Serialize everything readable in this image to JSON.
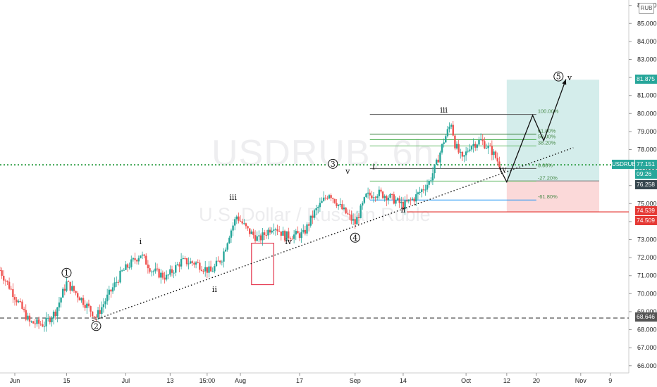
{
  "watermark": {
    "symbol": "USDRUB, 6h",
    "description": "U.S. Dollar / Russian Ruble"
  },
  "currency_badge": "RUB",
  "price_labels": {
    "target": "81.875",
    "current": "77.151",
    "countdown": "09:26",
    "level_76": "76.258",
    "stop_a": "74.539",
    "stop_b": "74.509",
    "support": "68.646"
  },
  "symbol_tag": "USDRUB",
  "fib_levels": [
    {
      "label": "100.00%",
      "price": 79.95,
      "color": "#555555"
    },
    {
      "label": "61.80%",
      "price": 78.85,
      "color": "#2e7d32"
    },
    {
      "label": "50.00%",
      "price": 78.55,
      "color": "#4caf50"
    },
    {
      "label": "38.20%",
      "price": 78.2,
      "color": "#66bb6a"
    },
    {
      "label": "0.00%",
      "price": 76.95,
      "color": "#555555"
    },
    {
      "label": "-27.20%",
      "price": 76.25,
      "color": "#66bb6a"
    },
    {
      "label": "-61.80%",
      "price": 75.2,
      "color": "#2196f3"
    }
  ],
  "wave_labels": [
    {
      "text": "1",
      "circled": true,
      "date": "2020-06-15",
      "price": 71.0
    },
    {
      "text": "2",
      "circled": true,
      "date": "2020-06-23",
      "price": 68.05
    },
    {
      "text": "3",
      "circled": true,
      "date": "2020-08-26",
      "price": 77.05
    },
    {
      "text": "4",
      "circled": true,
      "date": "2020-09-01",
      "price": 72.95
    },
    {
      "text": "5",
      "circled": true,
      "date": "2020-10-26",
      "price": 81.9
    },
    {
      "text": "i",
      "circled": false,
      "date": "2020-07-05",
      "price": 72.75
    },
    {
      "text": "ii",
      "circled": false,
      "date": "2020-07-25",
      "price": 70.1
    },
    {
      "text": "iii",
      "circled": false,
      "date": "2020-07-30",
      "price": 75.2
    },
    {
      "text": "iv",
      "circled": false,
      "date": "2020-08-14",
      "price": 72.75
    },
    {
      "text": "v",
      "circled": false,
      "date": "2020-08-30",
      "price": 76.65
    },
    {
      "text": "i",
      "circled": false,
      "date": "2020-09-06",
      "price": 76.9
    },
    {
      "text": "ii",
      "circled": false,
      "date": "2020-09-14",
      "price": 74.5
    },
    {
      "text": "iii",
      "circled": false,
      "date": "2020-09-25",
      "price": 80.05
    },
    {
      "text": "iv",
      "circled": false,
      "date": "2020-10-11",
      "price": 76.75
    },
    {
      "text": "v",
      "circled": false,
      "date": "2020-10-29",
      "price": 81.85
    }
  ],
  "chart_data": {
    "type": "candlestick",
    "symbol": "USDRUB",
    "timeframe": "6h",
    "x_type": "date",
    "x_range": [
      "2020-05-28",
      "2020-11-14"
    ],
    "ylim": [
      65.6,
      86.3
    ],
    "y_scale": "linear",
    "grid": false,
    "yticks": [
      66,
      67,
      68,
      69,
      70,
      71,
      72,
      73,
      74,
      75,
      76,
      77,
      78,
      79,
      80,
      81,
      82,
      83,
      84,
      85,
      86
    ],
    "ytick_labels": [
      "66.000",
      "67.000",
      "68.000",
      "69.000",
      "70.000",
      "71.000",
      "72.000",
      "73.000",
      "74.000",
      "75.000",
      "76.000",
      "77.000",
      "78.000",
      "79.000",
      "80.000",
      "81.000",
      "82.000",
      "83.000",
      "84.000",
      "85.000",
      "86.000"
    ],
    "xticks": [
      {
        "label": "Jun",
        "date": "2020-06-01"
      },
      {
        "label": "15",
        "date": "2020-06-15"
      },
      {
        "label": "Jul",
        "date": "2020-07-01"
      },
      {
        "label": "13",
        "date": "2020-07-13"
      },
      {
        "label": "15:00",
        "date": "2020-07-23"
      },
      {
        "label": "Aug",
        "date": "2020-08-01"
      },
      {
        "label": "17",
        "date": "2020-08-17"
      },
      {
        "label": "Sep",
        "date": "2020-09-01"
      },
      {
        "label": "14",
        "date": "2020-09-14"
      },
      {
        "label": "Oct",
        "date": "2020-10-01"
      },
      {
        "label": "12",
        "date": "2020-10-12"
      },
      {
        "label": "20",
        "date": "2020-10-20"
      },
      {
        "label": "Nov",
        "date": "2020-11-01"
      },
      {
        "label": "9",
        "date": "2020-11-09"
      }
    ],
    "price_path": [
      [
        "2020-05-28",
        71.3
      ],
      [
        "2020-06-02",
        69.5
      ],
      [
        "2020-06-05",
        68.4
      ],
      [
        "2020-06-09",
        68.3
      ],
      [
        "2020-06-12",
        69.0
      ],
      [
        "2020-06-15",
        70.6
      ],
      [
        "2020-06-19",
        69.7
      ],
      [
        "2020-06-23",
        68.7
      ],
      [
        "2020-06-26",
        69.8
      ],
      [
        "2020-06-30",
        71.2
      ],
      [
        "2020-07-02",
        71.6
      ],
      [
        "2020-07-05",
        72.2
      ],
      [
        "2020-07-08",
        71.3
      ],
      [
        "2020-07-12",
        70.9
      ],
      [
        "2020-07-16",
        71.8
      ],
      [
        "2020-07-20",
        71.7
      ],
      [
        "2020-07-24",
        71.2
      ],
      [
        "2020-07-27",
        72.0
      ],
      [
        "2020-07-29",
        73.3
      ],
      [
        "2020-07-31",
        74.3
      ],
      [
        "2020-08-03",
        73.5
      ],
      [
        "2020-08-06",
        73.0
      ],
      [
        "2020-08-10",
        73.8
      ],
      [
        "2020-08-13",
        73.2
      ],
      [
        "2020-08-18",
        73.3
      ],
      [
        "2020-08-21",
        74.5
      ],
      [
        "2020-08-25",
        75.6
      ],
      [
        "2020-08-28",
        74.8
      ],
      [
        "2020-09-01",
        73.9
      ],
      [
        "2020-09-04",
        75.4
      ],
      [
        "2020-09-07",
        75.6
      ],
      [
        "2020-09-10",
        75.4
      ],
      [
        "2020-09-14",
        74.9
      ],
      [
        "2020-09-17",
        75.3
      ],
      [
        "2020-09-21",
        76.2
      ],
      [
        "2020-09-23",
        77.2
      ],
      [
        "2020-09-25",
        78.5
      ],
      [
        "2020-09-27",
        79.5
      ],
      [
        "2020-09-28",
        78.3
      ],
      [
        "2020-09-30",
        77.4
      ],
      [
        "2020-10-02",
        78.2
      ],
      [
        "2020-10-05",
        78.5
      ],
      [
        "2020-10-08",
        77.9
      ],
      [
        "2020-10-10",
        77.2
      ]
    ],
    "trendline": {
      "from": [
        "2020-06-22",
        68.5
      ],
      "to": [
        "2020-10-30",
        78.1
      ],
      "style": "dotted"
    },
    "horizontal_lines": [
      {
        "label": "77.151",
        "price": 77.151,
        "style": "dotted",
        "color": "#2e9e44"
      },
      {
        "label": "74.539",
        "price": 74.539,
        "style": "solid",
        "color": "#e53935"
      },
      {
        "label": "68.646",
        "price": 68.646,
        "style": "dashed",
        "color": "#555555"
      }
    ],
    "projection_path": [
      [
        "2020-10-10",
        77.0
      ],
      [
        "2020-10-12",
        76.2
      ],
      [
        "2020-10-19",
        79.9
      ],
      [
        "2020-10-22",
        78.5
      ],
      [
        "2020-10-28",
        81.9
      ]
    ],
    "position_box": {
      "start": "2020-10-12",
      "end": "2020-11-06",
      "entry": 76.258,
      "target": 81.875,
      "stop": 74.539
    },
    "highlight_box": {
      "start": "2020-08-04",
      "end": "2020-08-10",
      "top": 72.8,
      "bottom": 70.5
    }
  }
}
